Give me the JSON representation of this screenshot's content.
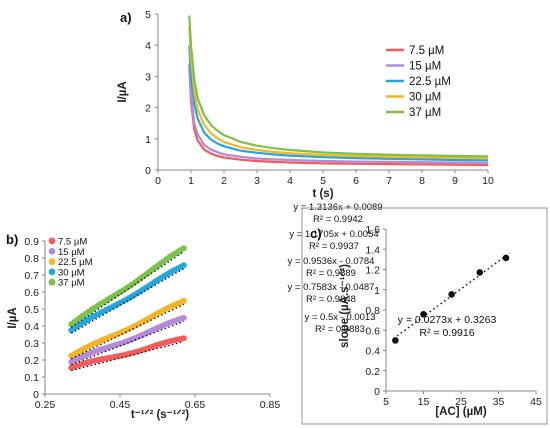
{
  "chart_data": [
    {
      "panel_label": "a)",
      "type": "line",
      "xlabel": "t (s)",
      "ylabel": "I/µA",
      "xlim": [
        0,
        10
      ],
      "ylim": [
        0,
        5
      ],
      "xticks": [
        0,
        1,
        2,
        3,
        4,
        5,
        6,
        7,
        8,
        9,
        10
      ],
      "yticks": [
        0,
        1,
        2,
        3,
        4,
        5
      ],
      "legend_position": "right",
      "series": [
        {
          "name": "7.5 µM",
          "color": "#f25c5c",
          "x": [
            0.95,
            1.0,
            1.1,
            1.2,
            1.4,
            1.6,
            1.8,
            2.0,
            2.5,
            3.0,
            3.5,
            4,
            5,
            6,
            7,
            8,
            9,
            10
          ],
          "y": [
            3.35,
            2.2,
            1.3,
            0.95,
            0.65,
            0.53,
            0.45,
            0.4,
            0.33,
            0.29,
            0.26,
            0.24,
            0.21,
            0.2,
            0.19,
            0.18,
            0.17,
            0.16
          ]
        },
        {
          "name": "15 µM",
          "color": "#b48ad9",
          "x": [
            0.95,
            1.0,
            1.1,
            1.2,
            1.4,
            1.6,
            1.8,
            2.0,
            2.5,
            3.0,
            3.5,
            4,
            5,
            6,
            7,
            8,
            9,
            10
          ],
          "y": [
            3.4,
            2.4,
            1.5,
            1.15,
            0.8,
            0.66,
            0.57,
            0.5,
            0.42,
            0.37,
            0.34,
            0.32,
            0.29,
            0.27,
            0.26,
            0.25,
            0.24,
            0.23
          ]
        },
        {
          "name": "22.5 µM",
          "color": "#22a8e0",
          "x": [
            0.95,
            1.0,
            1.1,
            1.2,
            1.4,
            1.6,
            1.8,
            2.0,
            2.5,
            3.0,
            3.5,
            4,
            5,
            6,
            7,
            8,
            9,
            10
          ],
          "y": [
            4.0,
            3.0,
            2.1,
            1.65,
            1.2,
            0.98,
            0.85,
            0.76,
            0.62,
            0.55,
            0.5,
            0.46,
            0.41,
            0.38,
            0.36,
            0.34,
            0.32,
            0.31
          ]
        },
        {
          "name": "30 µM",
          "color": "#f7b523",
          "x": [
            0.95,
            1.0,
            1.1,
            1.2,
            1.4,
            1.6,
            1.8,
            2.0,
            2.5,
            3.0,
            3.5,
            4,
            5,
            6,
            7,
            8,
            9,
            10
          ],
          "y": [
            4.6,
            3.6,
            2.5,
            1.95,
            1.45,
            1.18,
            1.02,
            0.9,
            0.73,
            0.64,
            0.58,
            0.54,
            0.48,
            0.45,
            0.43,
            0.41,
            0.39,
            0.38
          ]
        },
        {
          "name": "37 µM",
          "color": "#7cc24a",
          "x": [
            0.95,
            1.0,
            1.1,
            1.2,
            1.4,
            1.6,
            1.8,
            2.0,
            2.5,
            3.0,
            3.5,
            4,
            5,
            6,
            7,
            8,
            9,
            10
          ],
          "y": [
            4.95,
            4.0,
            2.9,
            2.3,
            1.75,
            1.45,
            1.26,
            1.12,
            0.9,
            0.78,
            0.7,
            0.64,
            0.56,
            0.52,
            0.49,
            0.47,
            0.45,
            0.44
          ]
        }
      ]
    },
    {
      "panel_label": "b)",
      "type": "scatter",
      "xlabel": "t⁻¹ᐟ² (s⁻¹ᐟ²)",
      "ylabel": "I/µA",
      "xlim": [
        0.25,
        0.85
      ],
      "ylim": [
        0,
        0.9
      ],
      "xticks": [
        0.25,
        0.45,
        0.65,
        0.85
      ],
      "xtick_labels": [
        "0.25",
        "0.45",
        "0.65",
        "0.85"
      ],
      "yticks": [
        0,
        0.1,
        0.2,
        0.3,
        0.4,
        0.5,
        0.6,
        0.7,
        0.8,
        0.9
      ],
      "ytick_labels": [
        "0",
        "0.1",
        "0.2",
        "0.3",
        "0.4",
        "0.5",
        "0.6",
        "0.7",
        "0.8",
        "0.9"
      ],
      "legend_position": "top-left",
      "x_start": 0.32,
      "x_end": 0.62,
      "series": [
        {
          "name": "7.5 µM",
          "color": "#f25c5c",
          "y_start": 0.155,
          "y_end": 0.325,
          "equation": "y = 0.5x - 0.0013",
          "r2": "R² = 0.9883"
        },
        {
          "name": "15 µM",
          "color": "#b48ad9",
          "y_start": 0.19,
          "y_end": 0.445,
          "equation": "y = 0.7583x - 0.0487",
          "r2": "R² = 0.9848"
        },
        {
          "name": "22.5 µM",
          "color": "#f7b523",
          "y_start": 0.225,
          "y_end": 0.545,
          "equation": "y = 0.9536x - 0.0784",
          "r2": "R² = 0.9889"
        },
        {
          "name": "30 µM",
          "color": "#22a8e0",
          "y_start": 0.375,
          "y_end": 0.755,
          "equation": "y = 1.1705x + 0.0054",
          "r2": "R² = 0.9937"
        },
        {
          "name": "37 µM",
          "color": "#7cc24a",
          "y_start": 0.41,
          "y_end": 0.855,
          "equation": "y = 1.3136x + 0.0089",
          "r2": "R² = 0.9942"
        }
      ]
    },
    {
      "panel_label": "c)",
      "type": "scatter",
      "xlabel": "[AC] (µM)",
      "ylabel": "slope (µA.s⁻¹ᐟ²)",
      "xlim": [
        5,
        45
      ],
      "ylim": [
        0,
        1.6
      ],
      "xticks": [
        5,
        15,
        25,
        35,
        45
      ],
      "yticks": [
        0,
        0.2,
        0.4,
        0.6,
        0.8,
        1,
        1.2,
        1.4,
        1.6
      ],
      "ytick_labels": [
        "0",
        "0.2",
        "0.4",
        "0.6",
        "0.8",
        "1",
        "1.2",
        "1.4",
        "1.6"
      ],
      "x": [
        7.5,
        15,
        22.5,
        30,
        37
      ],
      "y": [
        0.5,
        0.758,
        0.954,
        1.171,
        1.314
      ],
      "color": "#111111",
      "equation": "y = 0.0273x + 0.3263",
      "r2": "R² = 0.9916"
    }
  ]
}
